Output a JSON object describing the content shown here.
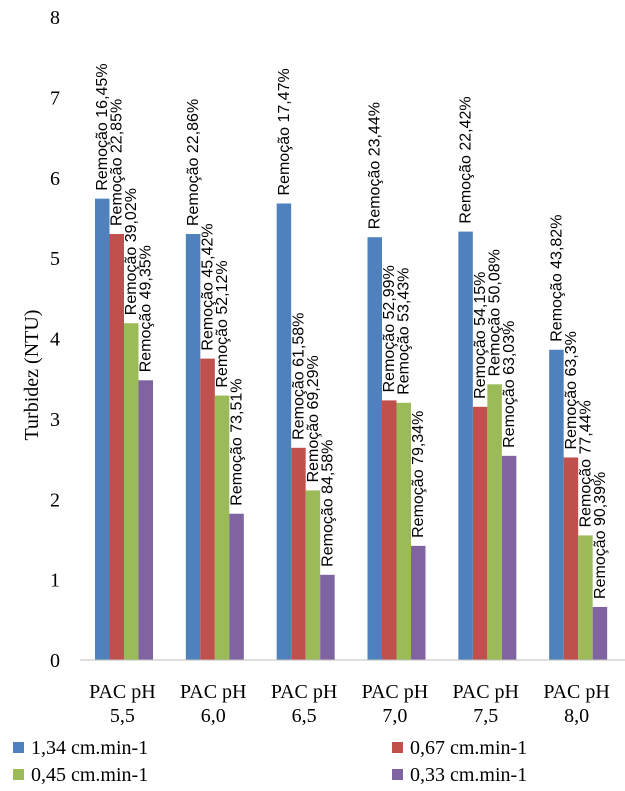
{
  "chart_data": {
    "type": "bar",
    "title": "",
    "xlabel": "",
    "ylabel": "Turbidez (NTU)",
    "ylim": [
      0,
      8
    ],
    "yticks": [
      "0",
      "1",
      "2",
      "3",
      "4",
      "5",
      "6",
      "7",
      "8"
    ],
    "grid": false,
    "legend_position": "bottom",
    "categories": [
      {
        "line1": "PAC pH",
        "line2": "5,5"
      },
      {
        "line1": "PAC pH",
        "line2": "6,0"
      },
      {
        "line1": "PAC pH",
        "line2": "6,5"
      },
      {
        "line1": "PAC pH",
        "line2": "7,0"
      },
      {
        "line1": "PAC pH",
        "line2": "7,5"
      },
      {
        "line1": "PAC pH",
        "line2": "8,0"
      }
    ],
    "series": [
      {
        "name": "1,34  cm.min-1",
        "color": "#4F81BD",
        "values": [
          5.74,
          5.3,
          5.68,
          5.26,
          5.33,
          3.86
        ],
        "labels": [
          "Remoção 16,45%",
          "Remoção 22,86%",
          "Remoção 17,47%",
          "Remoção 23,44%",
          "Remoção 22,42%",
          "Remoção 43,82%"
        ]
      },
      {
        "name": "0,67 cm.min-1",
        "color": "#C0504D",
        "values": [
          5.3,
          3.75,
          2.64,
          3.23,
          3.15,
          2.52
        ],
        "labels": [
          "Remoção 22,85%",
          "Remoção 45,42%",
          "Remoção 61,58%",
          "Remoção 52,99%",
          "Remoção 54,15%",
          "Remoção 63,3%"
        ]
      },
      {
        "name": "0,45 cm.min-1",
        "color": "#9BBB59",
        "values": [
          4.19,
          3.29,
          2.11,
          3.2,
          3.43,
          1.55
        ],
        "labels": [
          "Remoção 39,02%",
          "Remoção 52,12%",
          "Remoção 69,29%",
          "Remoção 53,43%",
          "Remoção 50,08%",
          "Remoção 77,44%"
        ]
      },
      {
        "name": "0,33  cm.min-1",
        "color": "#8064A2",
        "values": [
          3.48,
          1.82,
          1.06,
          1.42,
          2.54,
          0.66
        ],
        "labels": [
          "Remoção 49,35%",
          "Remoção 73,51%",
          "Remoção 84,58%",
          "Remoção 79,34%",
          "Remoção 63,03%",
          "Remoção 90,39%"
        ]
      }
    ]
  }
}
